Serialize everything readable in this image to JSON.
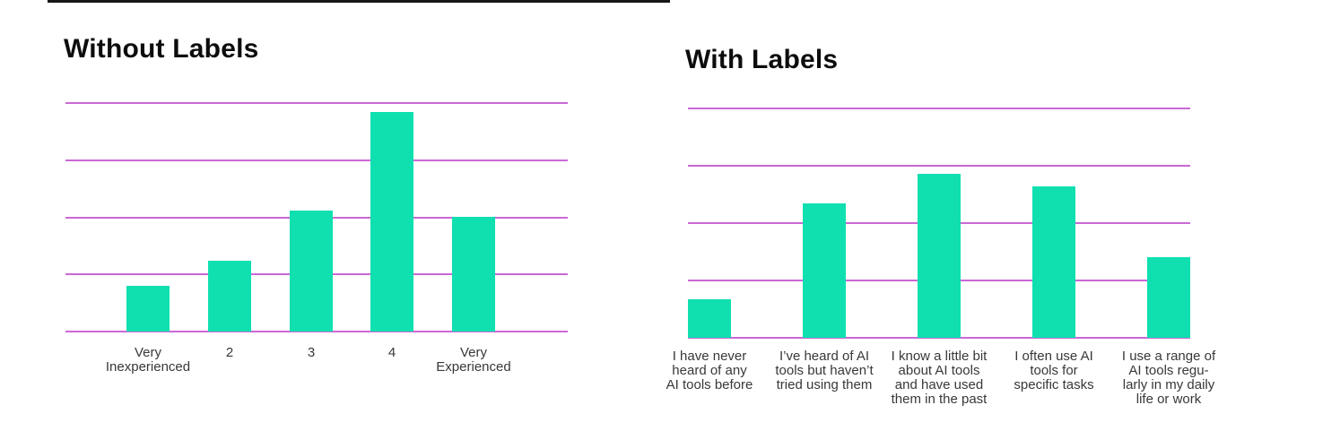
{
  "colors": {
    "bar_fill": "#10E0B0",
    "gridline": "#CB68D5",
    "title_text": "#0d0d0d",
    "axis_label_text": "#383838",
    "top_border_line": "#161616",
    "background": "#ffffff"
  },
  "chart_data": [
    {
      "type": "bar",
      "title": "Without Labels",
      "categories": [
        "Very\nInexperienced",
        "2",
        "3",
        "4",
        "Very\nExperienced"
      ],
      "values": [
        0.8,
        1.24,
        2.12,
        3.84,
        2.0
      ],
      "value_note": "relative units; no y-axis tick labels shown, estimated from gridlines",
      "ylim": [
        0,
        4
      ],
      "gridline_count": 5,
      "xlabel": "",
      "ylabel": "",
      "legend": "none",
      "bar_color": "#10E0B0",
      "gridline_color": "#CB68D5"
    },
    {
      "type": "bar",
      "title": "With Labels",
      "categories": [
        "I have never\nheard of any\nAI tools before",
        "I’ve heard of AI\ntools but haven’t\ntried using them",
        "I know a little bit\nabout AI tools\nand have used\nthem in the past",
        "I often use AI\ntools for\nspecific tasks",
        "I use a range of\nAI tools regu-\nlarly in my daily\nlife or work"
      ],
      "values": [
        0.67,
        2.34,
        2.86,
        2.64,
        1.41
      ],
      "value_note": "relative units; no y-axis tick labels shown, estimated from gridlines",
      "ylim": [
        0,
        4
      ],
      "gridline_count": 5,
      "xlabel": "",
      "ylabel": "",
      "legend": "none",
      "bar_color": "#10E0B0",
      "gridline_color": "#CB68D5"
    }
  ]
}
